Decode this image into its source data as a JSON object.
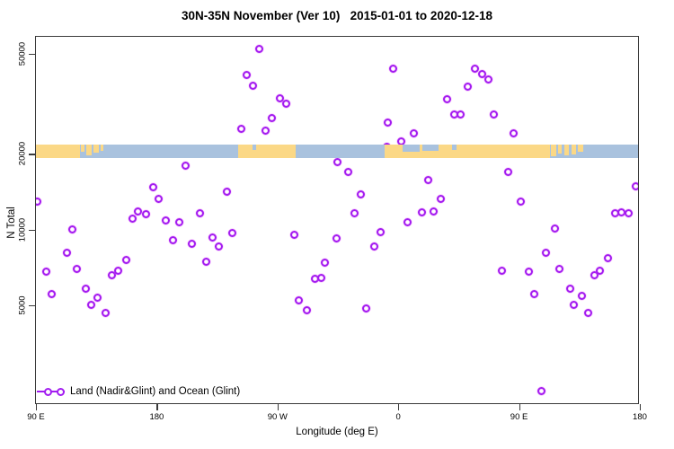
{
  "chart_data": {
    "type": "scatter",
    "title": "30N-35N November (Ver 10)   2015-01-01 to 2020-12-18",
    "xlabel": "Longitude (deg E)",
    "ylabel": "N Total",
    "x_axis": {
      "range_deg": [
        89.3,
        540
      ],
      "note": "longitude wraps eastward from 90E: 90E>180>90W>0>90E>180",
      "ticks": [
        {
          "lon": 90,
          "label": "90 E"
        },
        {
          "lon": 180,
          "label": "180"
        },
        {
          "lon": 270,
          "label": "90 W"
        },
        {
          "lon": 360,
          "label": "0"
        },
        {
          "lon": 450,
          "label": "90 E"
        },
        {
          "lon": 540,
          "label": "180"
        }
      ]
    },
    "y_axis": {
      "scale": "log10",
      "range": [
        2000,
        59000
      ],
      "ticks": [
        {
          "value": 50000,
          "label": "50000"
        },
        {
          "value": 20000,
          "label": "20000"
        },
        {
          "value": 10000,
          "label": "10000"
        },
        {
          "value": 5000,
          "label": "5000"
        }
      ]
    },
    "legend": {
      "label": "Land (Nadir&Glint) and Ocean (Glint)",
      "marker": "open-circles-on-line",
      "position": "bottom-left"
    },
    "marker_color": "#a21cf0",
    "series": [
      {
        "name": "Land (Nadir&Glint) and Ocean (Glint)",
        "marker": "open-circle",
        "points_format": [
          "lon_deg",
          "n_total"
        ],
        "points": [
          [
            90.7,
            12900
          ],
          [
            97.4,
            6780
          ],
          [
            101.4,
            5520
          ],
          [
            112.8,
            8120
          ],
          [
            116.8,
            9980
          ],
          [
            120.8,
            6950
          ],
          [
            127.5,
            5800
          ],
          [
            131.5,
            5040
          ],
          [
            136.2,
            5380
          ],
          [
            141.6,
            4680
          ],
          [
            146.9,
            6560
          ],
          [
            151.6,
            6840
          ],
          [
            157.0,
            7600
          ],
          [
            162.3,
            11100
          ],
          [
            166.3,
            11800
          ],
          [
            171.7,
            11500
          ],
          [
            177.1,
            14800
          ],
          [
            181.7,
            13200
          ],
          [
            187.1,
            10900
          ],
          [
            191.8,
            9110
          ],
          [
            196.5,
            10700
          ],
          [
            201.8,
            17900
          ],
          [
            206.5,
            8750
          ],
          [
            212.5,
            11600
          ],
          [
            217.2,
            7480
          ],
          [
            221.9,
            9340
          ],
          [
            226.6,
            8600
          ],
          [
            232.0,
            14200
          ],
          [
            236.0,
            9730
          ],
          [
            242.7,
            25100
          ],
          [
            246.7,
            41100
          ],
          [
            251.4,
            37200
          ],
          [
            256.1,
            52100
          ],
          [
            261.4,
            24700
          ],
          [
            266.1,
            27700
          ],
          [
            271.5,
            33400
          ],
          [
            276.8,
            31800
          ],
          [
            282.2,
            9500
          ],
          [
            286.2,
            5210
          ],
          [
            291.6,
            4760
          ],
          [
            297.6,
            6350
          ],
          [
            302.3,
            6400
          ],
          [
            305.6,
            7360
          ],
          [
            313.7,
            9190
          ],
          [
            315.0,
            18500
          ],
          [
            322.4,
            16900
          ],
          [
            327.1,
            11600
          ],
          [
            332.4,
            13800
          ],
          [
            336.4,
            4840
          ],
          [
            342.4,
            8600
          ],
          [
            347.1,
            9810
          ],
          [
            351.8,
            21400
          ],
          [
            352.5,
            26600
          ],
          [
            356.5,
            43800
          ],
          [
            361.9,
            22500
          ],
          [
            367.2,
            10700
          ],
          [
            371.3,
            24100
          ],
          [
            377.3,
            11700
          ],
          [
            382.0,
            15700
          ],
          [
            386.6,
            11800
          ],
          [
            391.4,
            13300
          ],
          [
            396.7,
            32900
          ],
          [
            401.4,
            28600
          ],
          [
            406.7,
            28600
          ],
          [
            412.1,
            36900
          ],
          [
            416.8,
            43800
          ],
          [
            422.2,
            41400
          ],
          [
            426.9,
            39400
          ],
          [
            431.5,
            28600
          ],
          [
            436.9,
            6840
          ],
          [
            441.6,
            16900
          ],
          [
            446.2,
            24100
          ],
          [
            451.6,
            12900
          ],
          [
            457.0,
            6780
          ],
          [
            461.0,
            5520
          ],
          [
            467.0,
            2280
          ],
          [
            470.3,
            8120
          ],
          [
            476.4,
            10100
          ],
          [
            480.4,
            6950
          ],
          [
            487.8,
            5800
          ],
          [
            491.1,
            5040
          ],
          [
            496.5,
            5430
          ],
          [
            501.2,
            4680
          ],
          [
            506.4,
            6560
          ],
          [
            510.5,
            6840
          ],
          [
            516.5,
            7670
          ],
          [
            521.9,
            11600
          ],
          [
            526.6,
            11700
          ],
          [
            531.9,
            11600
          ],
          [
            537.3,
            14900
          ]
        ]
      }
    ],
    "map_strip": {
      "description": "coastline band at 30N-35N drawn across the plot centered at N=20000",
      "center_value": 20000,
      "ocean_color": "#a9c2de",
      "land_color": "#fbd886",
      "ocean_range_deg": [
        89.3,
        539.7
      ],
      "land_segments": [
        {
          "from": 89.3,
          "to": 122.5,
          "anchor": "full",
          "frac": 1
        },
        {
          "from": 123.5,
          "to": 126.0,
          "anchor": "top",
          "frac": 0.55
        },
        {
          "from": 127.5,
          "to": 131.5,
          "anchor": "top",
          "frac": 0.8
        },
        {
          "from": 133.0,
          "to": 137.0,
          "anchor": "top",
          "frac": 0.6
        },
        {
          "from": 138.5,
          "to": 140.5,
          "anchor": "top",
          "frac": 0.45
        },
        {
          "from": 240.5,
          "to": 283.5,
          "anchor": "full",
          "frac": 1
        },
        {
          "from": 350.0,
          "to": 473.0,
          "anchor": "full",
          "frac": 1
        },
        {
          "from": 474.0,
          "to": 477.5,
          "anchor": "top",
          "frac": 0.85
        },
        {
          "from": 479.0,
          "to": 482.0,
          "anchor": "top",
          "frac": 0.65
        },
        {
          "from": 484.0,
          "to": 487.0,
          "anchor": "top",
          "frac": 0.8
        },
        {
          "from": 489.0,
          "to": 492.5,
          "anchor": "top",
          "frac": 0.7
        },
        {
          "from": 494.0,
          "to": 497.5,
          "anchor": "top",
          "frac": 0.55
        }
      ],
      "ocean_notches": [
        {
          "from": 363.0,
          "to": 376.0,
          "anchor": "top",
          "frac": 0.5
        },
        {
          "from": 378.0,
          "to": 390.0,
          "anchor": "top",
          "frac": 0.45
        },
        {
          "from": 400.0,
          "to": 403.5,
          "anchor": "top",
          "frac": 0.4
        },
        {
          "from": 251.5,
          "to": 254.0,
          "anchor": "top",
          "frac": 0.4
        }
      ]
    }
  }
}
